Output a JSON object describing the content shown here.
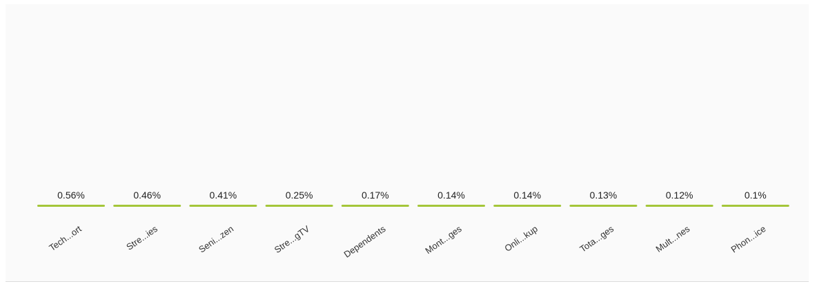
{
  "chart_data": {
    "type": "bar",
    "title": "",
    "xlabel": "",
    "ylabel": "",
    "categories": [
      "Tech...ort",
      "Stre...ies",
      "Seni...zen",
      "Stre...gTV",
      "Dependents",
      "Mont...ges",
      "Onli...kup",
      "Tota...ges",
      "Mult...nes",
      "Phon...ice"
    ],
    "values": [
      0.56,
      0.46,
      0.41,
      0.25,
      0.17,
      0.14,
      0.14,
      0.13,
      0.12,
      0.1
    ],
    "value_labels": [
      "0.56%",
      "0.46%",
      "0.41%",
      "0.25%",
      "0.17%",
      "0.14%",
      "0.14%",
      "0.13%",
      "0.12%",
      "0.1%"
    ],
    "ylim": [
      0,
      100
    ],
    "grid": false,
    "bar_color": "#a4c639",
    "bar_label_color": "#222222",
    "background_color": "#fafafa"
  }
}
